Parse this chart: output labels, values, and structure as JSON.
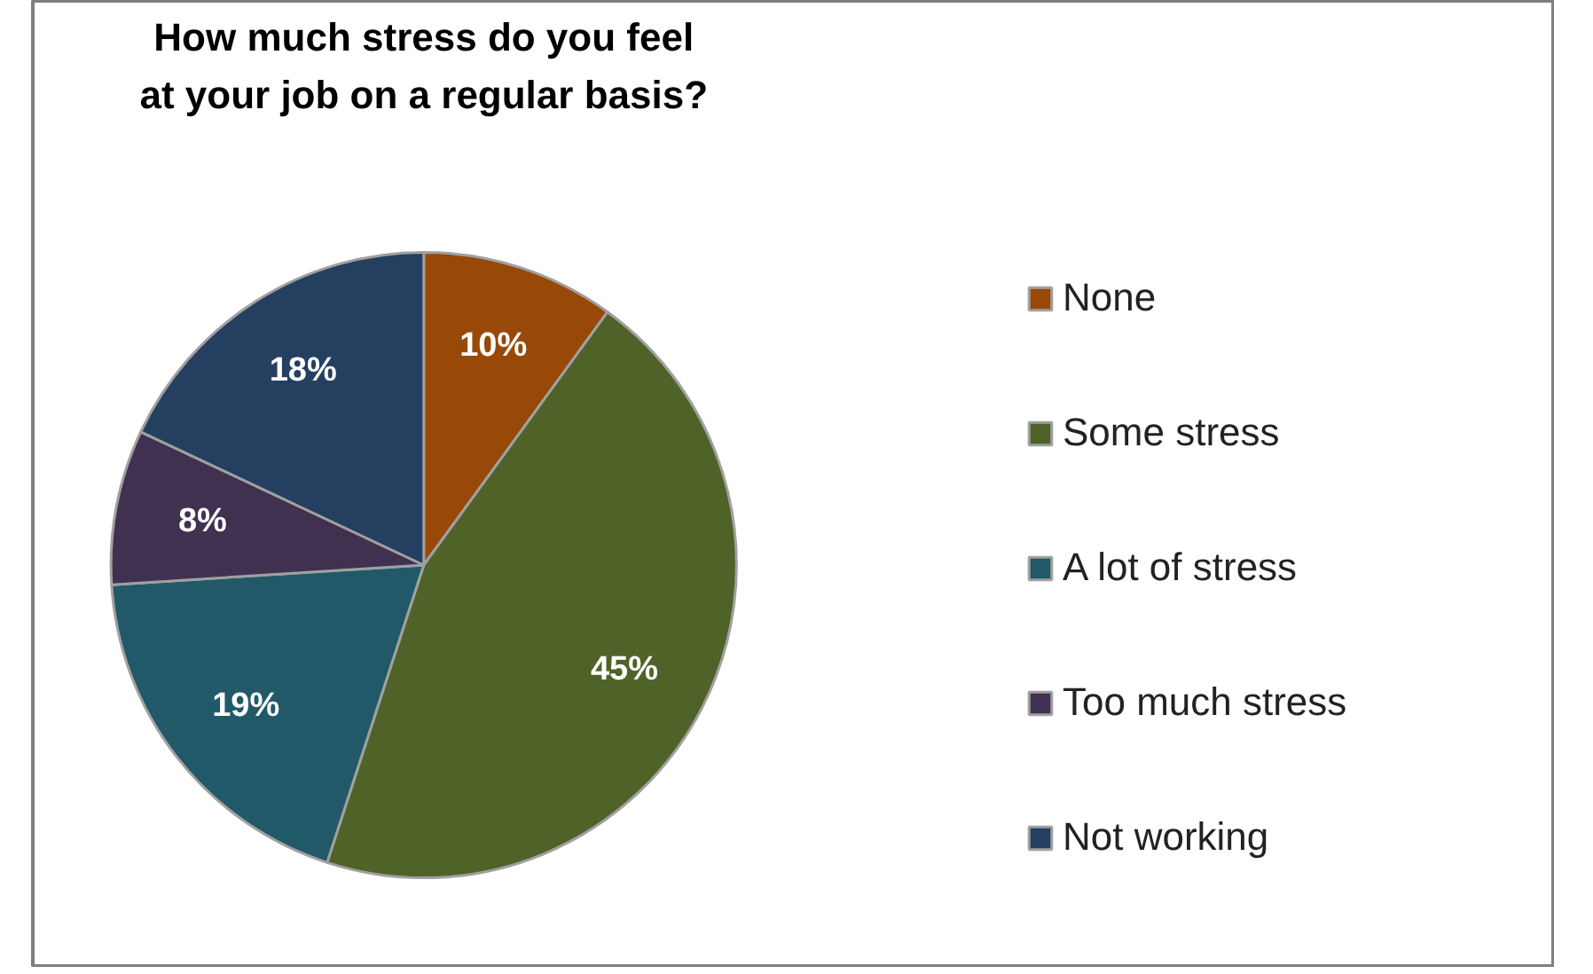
{
  "chart_data": {
    "type": "pie",
    "title": "How much stress do you feel\nat your job on a regular basis?",
    "categories": [
      "None",
      "Some stress",
      "A lot of stress",
      "Too much stress",
      "Not working"
    ],
    "values": [
      10,
      45,
      19,
      8,
      18
    ],
    "colors": [
      "#984807",
      "#4f6228",
      "#215968",
      "#403151",
      "#243f60"
    ],
    "value_labels": [
      "10%",
      "45%",
      "19%",
      "8%",
      "18%"
    ],
    "legend": "right"
  }
}
